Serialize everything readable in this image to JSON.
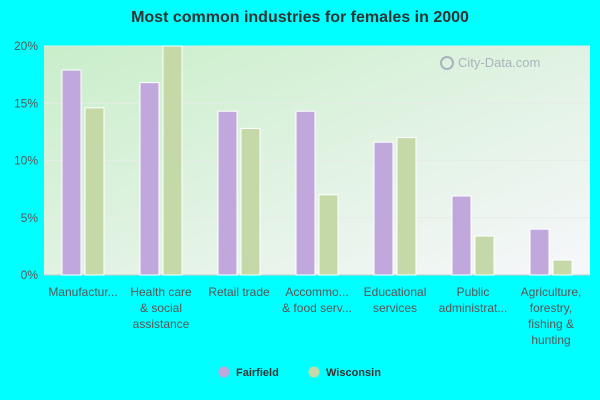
{
  "chart_data": {
    "type": "bar",
    "title": "Most common industries for females in 2000",
    "categories": [
      [
        "Manufactur..."
      ],
      [
        "Health care",
        "& social",
        "assistance"
      ],
      [
        "Retail trade"
      ],
      [
        "Accommo...",
        "& food serv..."
      ],
      [
        "Educational",
        "services"
      ],
      [
        "Public",
        "administrat..."
      ],
      [
        "Agriculture,",
        "forestry,",
        "fishing &",
        "hunting"
      ]
    ],
    "series": [
      {
        "name": "Fairfield",
        "color": "#C0A8DC",
        "values": [
          17.9,
          16.8,
          14.3,
          14.3,
          11.6,
          6.9,
          4.0
        ]
      },
      {
        "name": "Wisconsin",
        "color": "#C5D9A8",
        "values": [
          14.6,
          20.1,
          12.8,
          7.0,
          12.0,
          3.4,
          1.3
        ]
      }
    ],
    "ylim": [
      0,
      20
    ],
    "yticks": [
      0,
      5,
      10,
      15,
      20
    ],
    "ytick_labels": [
      "0%",
      "5%",
      "10%",
      "15%",
      "20%"
    ],
    "xlabel": "",
    "ylabel": "",
    "grid": true,
    "legend_position": "bottom-center"
  },
  "watermark": "City-Data.com",
  "colors": {
    "page_background": "#00FFFF",
    "plot_gradient_top": "#F7F7FB",
    "plot_gradient_bottom": "#C9EEC9"
  }
}
